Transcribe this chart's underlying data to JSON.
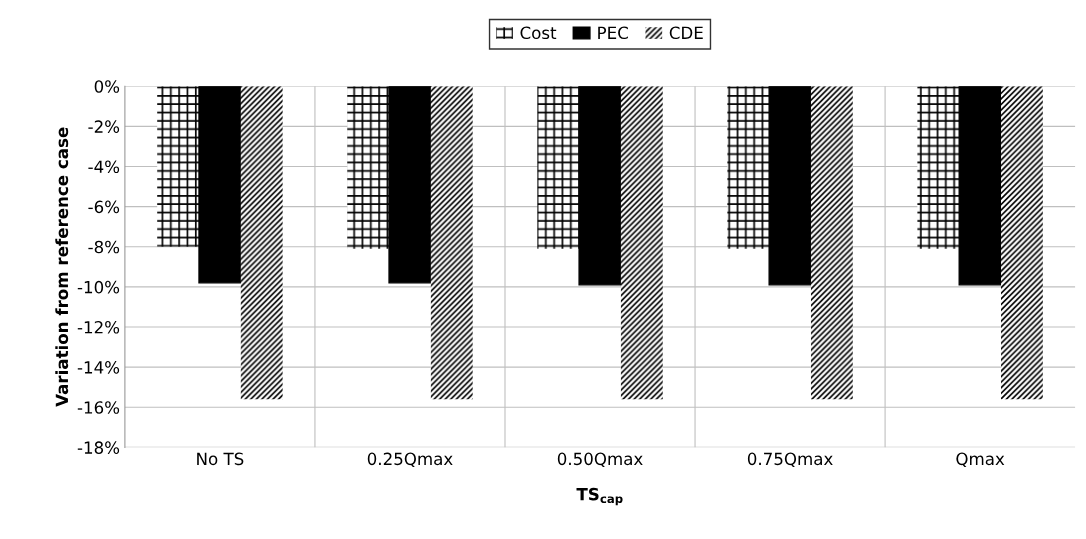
{
  "chart_data": {
    "type": "bar",
    "xlabel": "TS$_{cap}$",
    "ylabel": "Variation from reference case",
    "categories": [
      "No TS",
      "0.25Qmax",
      "0.50Qmax",
      "0.75Qmax",
      "Qmax"
    ],
    "series": [
      {
        "name": "Cost",
        "color": "#000000",
        "values": [
          -8.0,
          -8.1,
          -8.1,
          -8.1,
          -8.1
        ]
      },
      {
        "name": "PEC",
        "color": "#000000",
        "values": [
          -9.8,
          -9.8,
          -9.9,
          -9.9,
          -9.9
        ]
      },
      {
        "name": "CDE",
        "color": "#000000",
        "values": [
          -15.6,
          -15.6,
          -15.6,
          -15.6,
          -15.6
        ]
      }
    ],
    "ylim": [
      -18,
      0
    ],
    "yticks": [
      {
        "value": 0,
        "label": "0%"
      },
      {
        "value": -2,
        "label": "-2%"
      },
      {
        "value": -4,
        "label": "-4%"
      },
      {
        "value": -6,
        "label": "-6%"
      },
      {
        "value": -8,
        "label": "-8%"
      },
      {
        "value": -10,
        "label": "-10%"
      },
      {
        "value": -12,
        "label": "-12%"
      },
      {
        "value": -14,
        "label": "-14%"
      },
      {
        "value": -16,
        "label": "-16%"
      },
      {
        "value": -18,
        "label": "-18%"
      }
    ],
    "grid": true,
    "legend": "top"
  }
}
